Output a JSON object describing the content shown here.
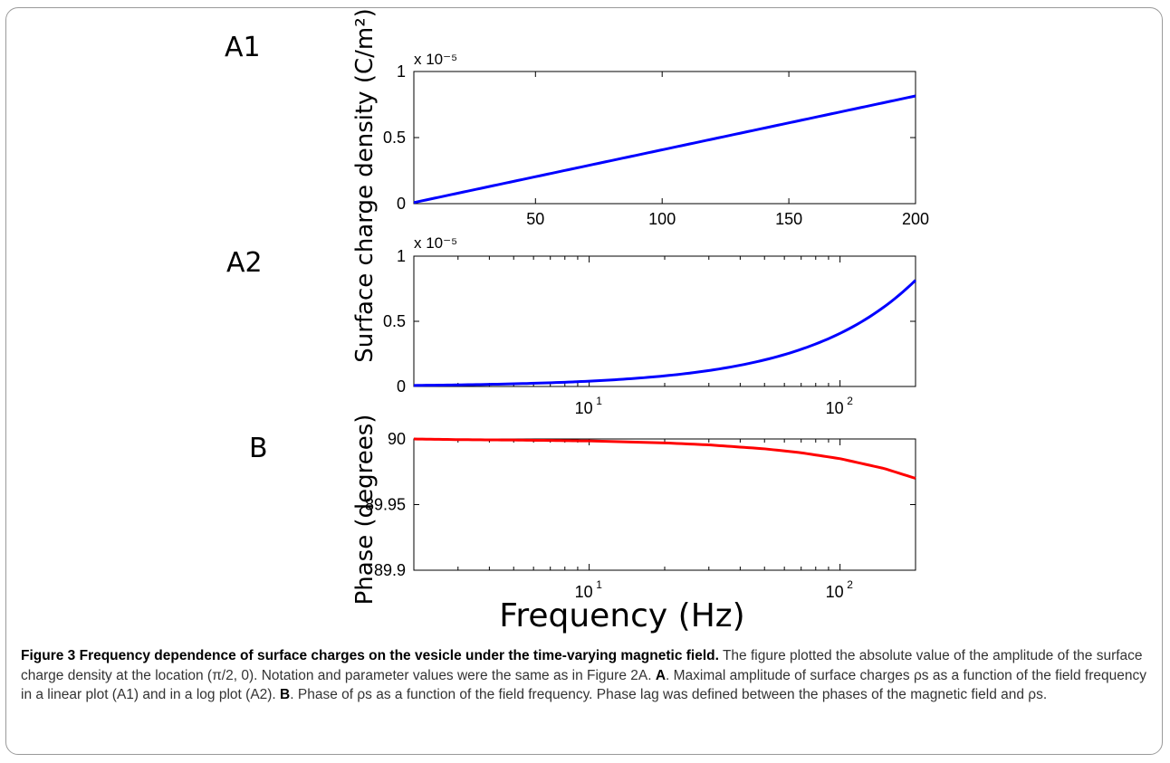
{
  "figure": {
    "panel_labels": [
      "A1",
      "A2",
      "B"
    ],
    "shared_ylabel_A": "Surface charge density (C/m²)",
    "ylabel_B": "Phase (degrees)",
    "xlabel": "Frequency (Hz)",
    "multiplier_A1": "x 10⁻⁵",
    "multiplier_A2": "x 10⁻⁵"
  },
  "chart_data": [
    {
      "type": "line",
      "panel": "A1",
      "xscale": "linear",
      "xlim": [
        2,
        200
      ],
      "ylim": [
        0,
        1
      ],
      "y_multiplier": "x 10^-5",
      "xticks": [
        50,
        100,
        150,
        200
      ],
      "xtick_labels": [
        "50",
        "100",
        "150",
        "200"
      ],
      "yticks": [
        0,
        0.5,
        1
      ],
      "ytick_labels": [
        "0",
        "0.5",
        "1"
      ],
      "color": "#0000ff",
      "series": [
        {
          "x": [
            2,
            200
          ],
          "y": [
            0.0082,
            0.815
          ]
        }
      ]
    },
    {
      "type": "line",
      "panel": "A2",
      "xscale": "log",
      "xlim": [
        2,
        200
      ],
      "ylim": [
        0,
        1
      ],
      "y_multiplier": "x 10^-5",
      "xticks": [
        10,
        100
      ],
      "xtick_labels": [
        "10¹",
        "10²"
      ],
      "yticks": [
        0,
        0.5,
        1
      ],
      "ytick_labels": [
        "0",
        "0.5",
        "1"
      ],
      "color": "#0000ff",
      "series": [
        {
          "x": [
            2,
            200
          ],
          "y": [
            0.0082,
            0.815
          ]
        }
      ]
    },
    {
      "type": "line",
      "panel": "B",
      "xscale": "log",
      "xlim": [
        2,
        200
      ],
      "ylim": [
        89.9,
        90
      ],
      "xticks": [
        10,
        100
      ],
      "xtick_labels": [
        "10¹",
        "10²"
      ],
      "yticks": [
        89.9,
        89.95,
        90
      ],
      "ytick_labels": [
        "89.9",
        "89.95",
        "90"
      ],
      "color": "#ff0000",
      "series": [
        {
          "x": [
            2,
            3,
            5,
            10,
            20,
            30,
            50,
            70,
            100,
            150,
            200
          ],
          "y": [
            90.0,
            89.9995,
            89.9992,
            89.9985,
            89.997,
            89.9955,
            89.9925,
            89.9895,
            89.985,
            89.9775,
            89.97
          ]
        }
      ]
    }
  ],
  "caption": {
    "title": "Figure 3 Frequency dependence of surface charges on the vesicle under the time-varying magnetic field.",
    "line1": " The figure plotted the absolute value of the amplitude of the surface charge density at the location (π/2, 0). Notation and parameter values were the same as in Figure 2A. ",
    "A_bold": "A",
    "A_text": ". Maximal amplitude of surface charges ρs as a function of the field frequency in a linear plot (A1) and in a log plot (A2). ",
    "B_bold": "B",
    "B_text": ". Phase of ρs as a function of the field frequency. Phase lag was defined between the phases of the magnetic field and ρs."
  }
}
